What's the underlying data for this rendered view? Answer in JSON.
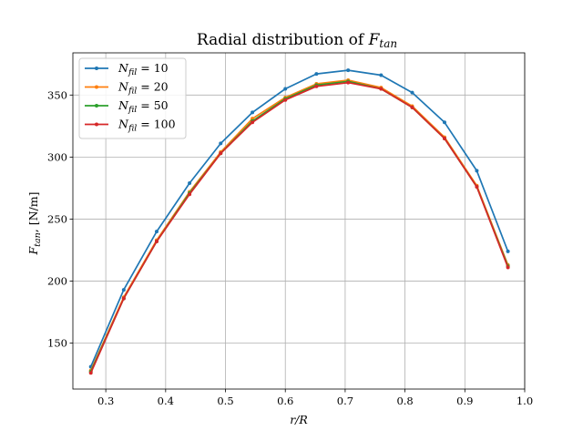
{
  "chart_data": {
    "type": "line",
    "title_main": "Radial distribution of ",
    "title_sym": "F",
    "title_sub": "tan",
    "xlabel": "r/R",
    "ylabel_sym": "F",
    "ylabel_sub": "tan",
    "ylabel_unit": ", [N/m]",
    "xlim": [
      0.245,
      1.0
    ],
    "ylim": [
      113,
      384
    ],
    "xticks": [
      0.3,
      0.4,
      0.5,
      0.6,
      0.7,
      0.8,
      0.9,
      1.0
    ],
    "xtick_labels": [
      "0.3",
      "0.4",
      "0.5",
      "0.6",
      "0.7",
      "0.8",
      "0.9",
      "1.0"
    ],
    "yticks": [
      150,
      200,
      250,
      300,
      350
    ],
    "ytick_labels": [
      "150",
      "200",
      "250",
      "300",
      "350"
    ],
    "grid": true,
    "legend_position": "top-left",
    "x": [
      0.275,
      0.33,
      0.385,
      0.44,
      0.492,
      0.545,
      0.6,
      0.652,
      0.705,
      0.76,
      0.812,
      0.866,
      0.92,
      0.972
    ],
    "series": [
      {
        "name_sym": "N",
        "name_sub": "fil",
        "name_val": " = 10",
        "color": "#1f77b4",
        "values": [
          131,
          193,
          240,
          279,
          311,
          336,
          355,
          367,
          370,
          366,
          352,
          328,
          289,
          224
        ]
      },
      {
        "name_sym": "N",
        "name_sub": "fil",
        "name_val": " = 20",
        "color": "#ff7f0e",
        "values": [
          128,
          187,
          233,
          272,
          304,
          331,
          348,
          359,
          362,
          356,
          341,
          316,
          277,
          213
        ]
      },
      {
        "name_sym": "N",
        "name_sub": "fil",
        "name_val": " = 50",
        "color": "#2ca02c",
        "values": [
          127,
          186,
          232,
          271,
          303,
          329,
          347,
          358,
          361,
          355,
          340,
          315,
          276,
          212
        ]
      },
      {
        "name_sym": "N",
        "name_sub": "fil",
        "name_val": " = 100",
        "color": "#d62728",
        "values": [
          126,
          186,
          232,
          270,
          303,
          328,
          346,
          357,
          360,
          355,
          340,
          315,
          276,
          211
        ]
      }
    ]
  }
}
